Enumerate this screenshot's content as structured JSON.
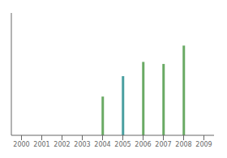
{
  "chart_data": {
    "type": "bar",
    "categories": [
      "2000",
      "2001",
      "2002",
      "2003",
      "2004",
      "2005",
      "2006",
      "2007",
      "2008",
      "2009"
    ],
    "values": [
      0,
      0,
      0,
      0,
      38,
      58,
      72,
      70,
      88,
      0
    ],
    "colors": [
      "#6aaa64",
      "#6aaa64",
      "#6aaa64",
      "#6aaa64",
      "#6aaa64",
      "#4a9fa0",
      "#6aaa64",
      "#6aaa64",
      "#6aaa64",
      "#6aaa64"
    ],
    "ylim": [
      0,
      120
    ],
    "yticks": [],
    "grid": false,
    "tick_labels": "x"
  }
}
